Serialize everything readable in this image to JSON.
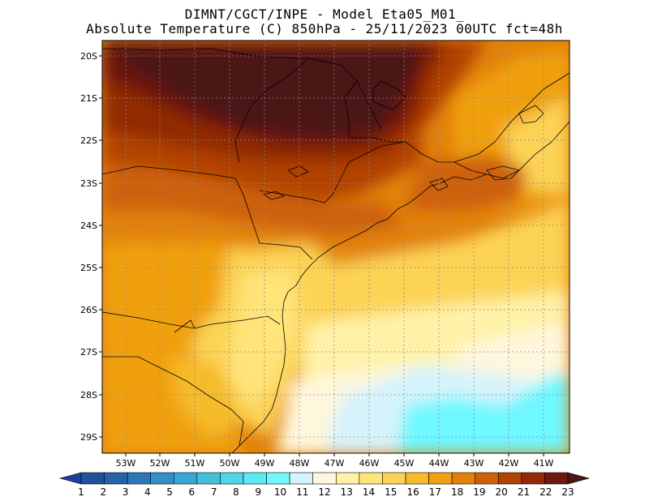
{
  "header": {
    "line1": "DIMNT/CGCT/INPE  -   Model Eta05_M01_",
    "line2": "Absolute Temperature (C) 850hPa -  25/11/2023 00UTC fct=48h"
  },
  "map": {
    "lat_labels": [
      "20S",
      "21S",
      "22S",
      "23S",
      "24S",
      "25S",
      "26S",
      "27S",
      "28S",
      "29S"
    ],
    "lon_labels": [
      "53W",
      "52W",
      "51W",
      "50W",
      "49W",
      "48W",
      "47W",
      "46W",
      "45W",
      "44W",
      "43W",
      "42W",
      "41W"
    ],
    "lat_range": [
      -29.4,
      -19.9
    ],
    "lon_range": [
      -53.8,
      -40.6
    ]
  },
  "colorbar": {
    "labels": [
      "1",
      "2",
      "3",
      "4",
      "5",
      "6",
      "7",
      "8",
      "9",
      "10",
      "11",
      "12",
      "13",
      "14",
      "15",
      "16",
      "17",
      "18",
      "19",
      "20",
      "21",
      "22",
      "23"
    ],
    "colors": [
      "#1f3f97",
      "#21509f",
      "#2563ab",
      "#2a78b8",
      "#3190c5",
      "#3aa7d2",
      "#45bfde",
      "#4fd6ea",
      "#5aeaf4",
      "#6ef8ff",
      "#d5f3fb",
      "#fff7dd",
      "#fff2a8",
      "#ffe47a",
      "#fcd354",
      "#f6bb2c",
      "#f0a010",
      "#e2820a",
      "#cd6108",
      "#b24206",
      "#922a06",
      "#6e1710",
      "#4c1712"
    ]
  }
}
